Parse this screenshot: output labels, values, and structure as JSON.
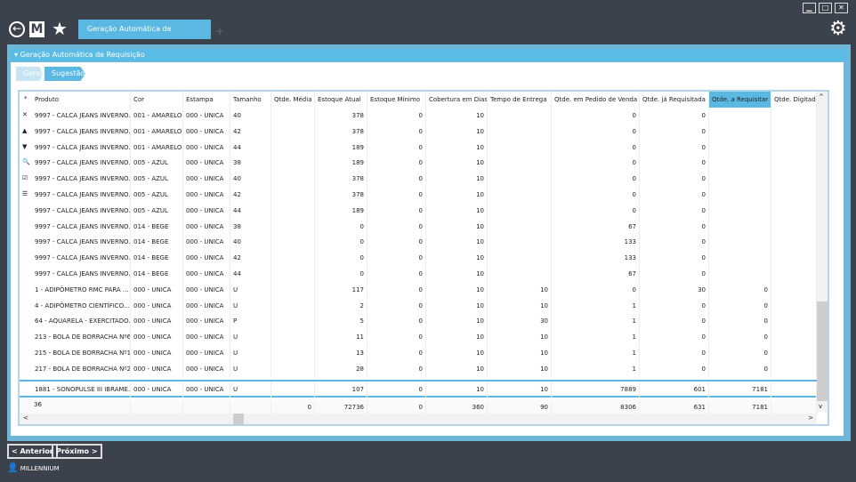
{
  "window": {
    "min": "▁",
    "max": "□",
    "close": "✕"
  },
  "toolbar": {
    "tab_label": "Geração Automática de Requisição",
    "tab_close": "✕"
  },
  "panel": {
    "title": "Geração Automática de Requisição"
  },
  "breadcrumb": [
    "Geral",
    "Sugestão"
  ],
  "columns": [
    "Produto",
    "Cor",
    "Estampa",
    "Tamanho",
    "Qtde. Média ...",
    "Estoque Atual",
    "Estoque Mínimo",
    "Cobertura em Dias",
    "Tempo de Entrega",
    "Qtde. em Pedido de Venda",
    "Qtde. já Requisitada",
    "Qtde. a Requisitar",
    "Qtde. Digitada"
  ],
  "rows": [
    [
      "9997 - CALCA JEANS INVERNO...",
      "001 - AMARELO",
      "000 - UNICA",
      "40",
      "",
      "378",
      "0",
      "10",
      "",
      "0",
      "0",
      "",
      ""
    ],
    [
      "9997 - CALCA JEANS INVERNO...",
      "001 - AMARELO",
      "000 - UNICA",
      "42",
      "",
      "378",
      "0",
      "10",
      "",
      "0",
      "0",
      "",
      ""
    ],
    [
      "9997 - CALCA JEANS INVERNO...",
      "001 - AMARELO",
      "000 - UNICA",
      "44",
      "",
      "189",
      "0",
      "10",
      "",
      "0",
      "0",
      "",
      ""
    ],
    [
      "9997 - CALCA JEANS INVERNO...",
      "005 - AZUL",
      "000 - UNICA",
      "38",
      "",
      "189",
      "0",
      "10",
      "",
      "0",
      "0",
      "",
      ""
    ],
    [
      "9997 - CALCA JEANS INVERNO...",
      "005 - AZUL",
      "000 - UNICA",
      "40",
      "",
      "378",
      "0",
      "10",
      "",
      "0",
      "0",
      "",
      ""
    ],
    [
      "9997 - CALCA JEANS INVERNO...",
      "005 - AZUL",
      "000 - UNICA",
      "42",
      "",
      "378",
      "0",
      "10",
      "",
      "0",
      "0",
      "",
      ""
    ],
    [
      "9997 - CALCA JEANS INVERNO...",
      "005 - AZUL",
      "000 - UNICA",
      "44",
      "",
      "189",
      "0",
      "10",
      "",
      "0",
      "0",
      "",
      ""
    ],
    [
      "9997 - CALCA JEANS INVERNO...",
      "014 - BEGE",
      "000 - UNICA",
      "38",
      "",
      "0",
      "0",
      "10",
      "",
      "67",
      "0",
      "",
      ""
    ],
    [
      "9997 - CALCA JEANS INVERNO...",
      "014 - BEGE",
      "000 - UNICA",
      "40",
      "",
      "0",
      "0",
      "10",
      "",
      "133",
      "0",
      "",
      ""
    ],
    [
      "9997 - CALCA JEANS INVERNO...",
      "014 - BEGE",
      "000 - UNICA",
      "42",
      "",
      "0",
      "0",
      "10",
      "",
      "133",
      "0",
      "",
      ""
    ],
    [
      "9997 - CALCA JEANS INVERNO...",
      "014 - BEGE",
      "000 - UNICA",
      "44",
      "",
      "0",
      "0",
      "10",
      "",
      "67",
      "0",
      "",
      ""
    ],
    [
      "1 - ADIPÔMETRO RMC PARA ...",
      "000 - UNICA",
      "000 - UNICA",
      "U",
      "",
      "117",
      "0",
      "10",
      "10",
      "0",
      "30",
      "0",
      ""
    ],
    [
      "4 - ADIPÔMETRO CIENTÍFICO...",
      "000 - UNICA",
      "000 - UNICA",
      "U",
      "",
      "2",
      "0",
      "10",
      "10",
      "1",
      "0",
      "0",
      ""
    ],
    [
      "64 - AQUARELA - EXERCITADO...",
      "000 - UNICA",
      "000 - UNICA",
      "P",
      "",
      "5",
      "0",
      "10",
      "30",
      "1",
      "0",
      "0",
      ""
    ],
    [
      "213 - BOLA DE BORRACHA Nº6...",
      "000 - UNICA",
      "000 - UNICA",
      "U",
      "",
      "11",
      "0",
      "10",
      "10",
      "1",
      "0",
      "0",
      ""
    ],
    [
      "215 - BOLA DE BORRACHA Nº1...",
      "000 - UNICA",
      "000 - UNICA",
      "U",
      "",
      "13",
      "0",
      "10",
      "10",
      "1",
      "0",
      "0",
      ""
    ],
    [
      "217 - BOLA DE BORRACHA Nº2...",
      "000 - UNICA",
      "000 - UNICA",
      "U",
      "",
      "28",
      "0",
      "10",
      "10",
      "1",
      "0",
      "0",
      ""
    ],
    [
      "1881 - SONOPULSE III IBRAME...",
      "000 - UNICA",
      "000 - UNICA",
      "U",
      "",
      "107",
      "0",
      "10",
      "10",
      "7889",
      "601",
      "7181",
      ""
    ]
  ],
  "footer": {
    "count": "36",
    "totals": [
      "",
      "",
      "",
      "",
      "0",
      "72736",
      "0",
      "360",
      "90",
      "8306",
      "631",
      "7181",
      ""
    ]
  },
  "nav": {
    "prev": "< Anterior",
    "next": "Próximo >"
  },
  "user": {
    "name": "MILLENNIUM"
  }
}
